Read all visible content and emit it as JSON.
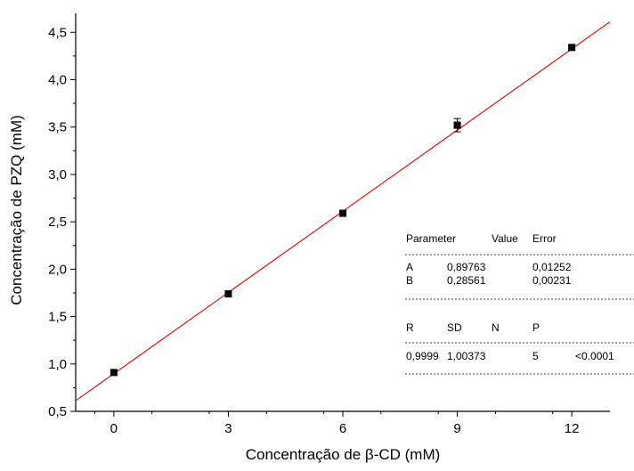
{
  "chart_data": {
    "type": "scatter",
    "title": "",
    "xlabel": "Concentração de β-CD (mM)",
    "ylabel": "Concentração de PZQ (mM)",
    "xlim": [
      -1,
      13
    ],
    "ylim": [
      0.5,
      4.7
    ],
    "x_ticks": [
      0,
      3,
      6,
      9,
      12
    ],
    "y_ticks": [
      0.5,
      1.0,
      1.5,
      2.0,
      2.5,
      3.0,
      3.5,
      4.0,
      4.5
    ],
    "x_tick_labels": [
      "0",
      "3",
      "6",
      "9",
      "12"
    ],
    "y_tick_labels": [
      "0,5",
      "1,0",
      "1,5",
      "2,0",
      "2,5",
      "3,0",
      "3,5",
      "4,0",
      "4,5"
    ],
    "series": [
      {
        "x": [
          0,
          3,
          6,
          9,
          12
        ],
        "y": [
          0.91,
          1.74,
          2.59,
          3.52,
          4.34
        ],
        "error": [
          0.02,
          0.03,
          0.03,
          0.07,
          0.03
        ],
        "color": "#000000"
      }
    ],
    "fit_line": {
      "intercept": 0.89763,
      "slope": 0.28561,
      "color": "#e00000"
    },
    "stats_table": {
      "param_header": [
        "Parameter",
        "Value",
        "Error"
      ],
      "param_rows": [
        [
          "A",
          "0,89763",
          "0,01252"
        ],
        [
          "B",
          "0,28561",
          "0,00231"
        ]
      ],
      "stat_header": [
        "R",
        "SD",
        "N",
        "P"
      ],
      "stat_row": [
        "0,9999",
        "1,00373",
        "5",
        "<0.0001"
      ]
    },
    "grid": false,
    "legend": "none"
  }
}
